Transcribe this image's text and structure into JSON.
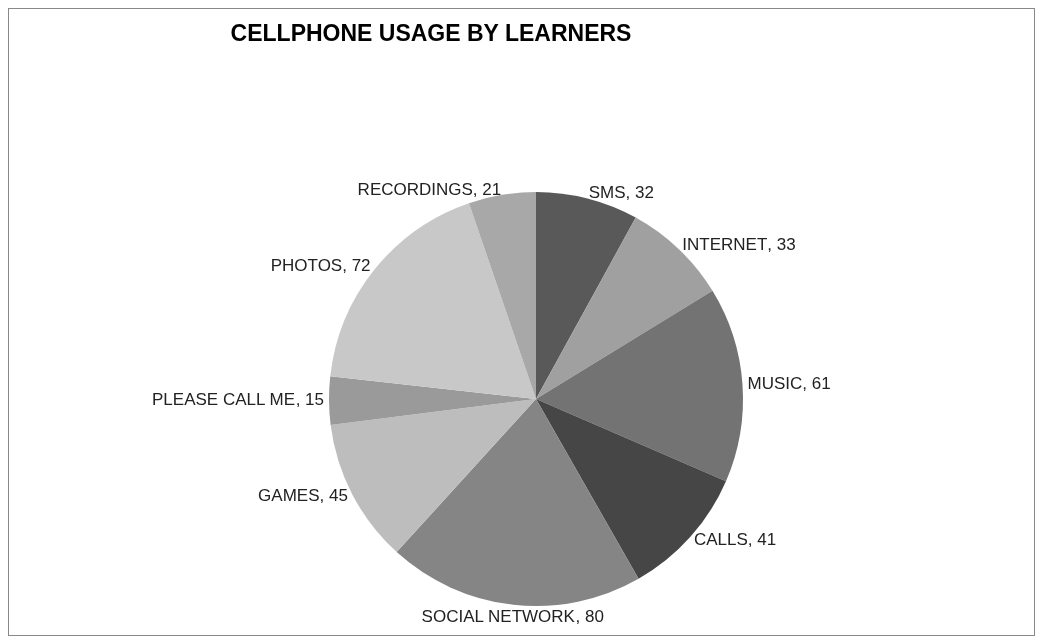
{
  "chart_data": {
    "type": "pie",
    "title": "CELLPHONE USAGE BY LEARNERS",
    "categories": [
      "SMS",
      "INTERNET",
      "MUSIC",
      "CALLS",
      "SOCIAL NETWORK",
      "GAMES",
      "PLEASE CALL ME",
      "PHOTOS",
      "RECORDINGS"
    ],
    "values": [
      32,
      33,
      61,
      41,
      80,
      45,
      15,
      72,
      21
    ],
    "value_labels": [
      ", 32",
      ", 33",
      ", 61",
      ", 41",
      ", 80",
      ", 45",
      ", 15",
      ", 72",
      ", 21"
    ],
    "colors": [
      "#595959",
      "#a0a0a0",
      "#737373",
      "#464646",
      "#858585",
      "#bdbdbd",
      "#9a9a9a",
      "#c8c8c8",
      "#a8a8a8"
    ],
    "legend": false
  }
}
